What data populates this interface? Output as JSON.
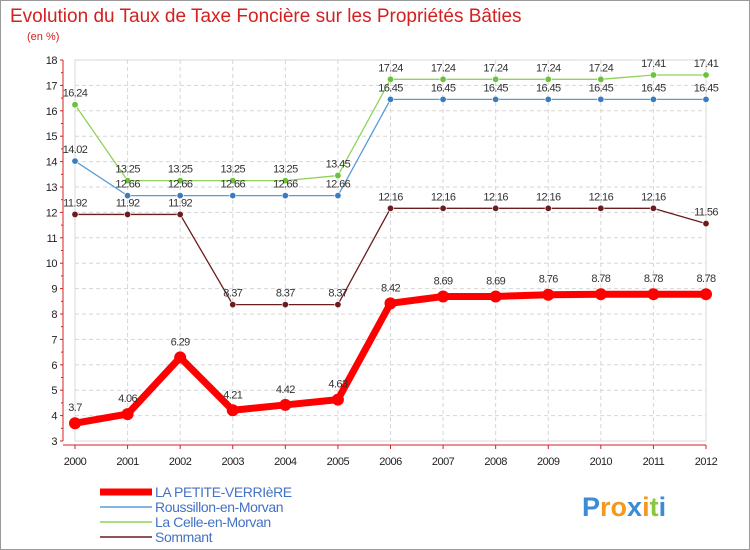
{
  "chart_data": {
    "type": "line",
    "title": "Evolution du Taux de Taxe Foncière sur les Propriétés Bâties",
    "subtitle": "(en %)",
    "xlabel": "",
    "ylabel": "(en %)",
    "ylim": [
      3,
      18
    ],
    "yticks": [
      3,
      4,
      5,
      6,
      7,
      8,
      9,
      10,
      11,
      12,
      13,
      14,
      15,
      16,
      17,
      18
    ],
    "categories": [
      "2000",
      "2001",
      "2002",
      "2003",
      "2004",
      "2005",
      "2006",
      "2007",
      "2008",
      "2009",
      "2010",
      "2011",
      "2012"
    ],
    "grid": true,
    "legend_position": "bottom-left",
    "series": [
      {
        "name": "Sommant",
        "color": "#6b1c1c",
        "marker_color": "#6b1c1c",
        "values": [
          11.92,
          11.92,
          11.92,
          8.37,
          8.37,
          8.37,
          12.16,
          12.16,
          12.16,
          12.16,
          12.16,
          12.16,
          11.56
        ],
        "labels": [
          "11.92",
          "11.92",
          "11.92",
          "8.37",
          "8.37",
          "8.37",
          "12.16",
          "12.16",
          "12.16",
          "12.16",
          "12.16",
          "12.16",
          "11.56"
        ]
      },
      {
        "name": "Roussillon-en-Morvan",
        "color": "#5b9bd5",
        "marker_color": "#3a7cc0",
        "values": [
          14.02,
          12.66,
          12.66,
          12.66,
          12.66,
          12.66,
          16.45,
          16.45,
          16.45,
          16.45,
          16.45,
          16.45,
          16.45
        ],
        "labels": [
          "14.02",
          "12.66",
          "12.66",
          "12.66",
          "12.66",
          "12.66",
          "16.45",
          "16.45",
          "16.45",
          "16.45",
          "16.45",
          "16.45",
          "16.45"
        ]
      },
      {
        "name": "La Celle-en-Morvan",
        "color": "#8fd35a",
        "marker_color": "#6cc23a",
        "values": [
          16.24,
          13.25,
          13.25,
          13.25,
          13.25,
          13.45,
          17.24,
          17.24,
          17.24,
          17.24,
          17.24,
          17.41,
          17.41
        ],
        "labels": [
          "16.24",
          "13.25",
          "13.25",
          "13.25",
          "13.25",
          "13.45",
          "17.24",
          "17.24",
          "17.24",
          "17.24",
          "17.24",
          "17.41",
          "17.41"
        ]
      },
      {
        "name": "LA PETITE-VERRIèRE",
        "color": "#ff0000",
        "marker_color": "#ff0000",
        "values": [
          3.7,
          4.06,
          6.29,
          4.21,
          4.42,
          4.63,
          8.42,
          8.69,
          8.69,
          8.76,
          8.78,
          8.78,
          8.78
        ],
        "labels": [
          "3.7",
          "4.06",
          "6.29",
          "4.21",
          "4.42",
          "4.63",
          "8.42",
          "8.69",
          "8.69",
          "8.76",
          "8.78",
          "8.78",
          "8.78"
        ]
      }
    ],
    "legend": [
      {
        "name": "LA PETITE-VERRIèRE",
        "color": "#ff0000",
        "text_color": "#4472c4"
      },
      {
        "name": "Roussillon-en-Morvan",
        "color": "#5b9bd5",
        "text_color": "#4472c4"
      },
      {
        "name": "La Celle-en-Morvan",
        "color": "#8fd35a",
        "text_color": "#4472c4"
      },
      {
        "name": "Sommant",
        "color": "#6b1c1c",
        "text_color": "#4472c4"
      }
    ]
  },
  "logo": {
    "letters": [
      "P",
      "r",
      "o",
      "x",
      "i",
      "t",
      "i"
    ],
    "colors": [
      "#3b8bd6",
      "#f39a1e",
      "#f39a1e",
      "#3b8bd6",
      "#f39a1e",
      "#8cc63f",
      "#3b8bd6"
    ]
  }
}
